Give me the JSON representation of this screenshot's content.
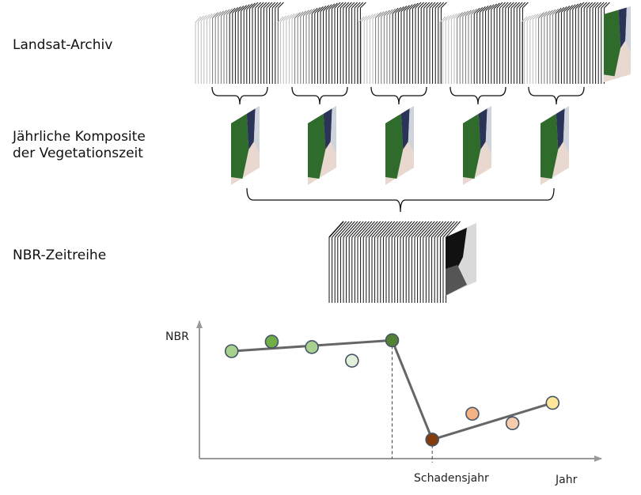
{
  "labels": {
    "archive": "Landsat-Archiv",
    "composites_line1": "Jährliche Komposite",
    "composites_line2": "der Vegetationszeit",
    "nbr_series": "NBR-Zeitreihe"
  },
  "plot": {
    "y_label": "NBR",
    "x_label": "Jahr",
    "event_label": "Schadensjahr"
  },
  "colors": {
    "stack_line": "#000000",
    "trend_line": "#666666",
    "axis": "#999999",
    "point_stroke": "#44546a",
    "forest": "#2f6b2a",
    "water": "#2a3358",
    "land": "#e8d8cf"
  },
  "chart_data": {
    "type": "scatter",
    "xlabel": "Jahr",
    "ylabel": "NBR",
    "points": [
      {
        "x": 1,
        "y": 0.79,
        "color": "#a9d18e"
      },
      {
        "x": 2,
        "y": 0.86,
        "color": "#70ad47"
      },
      {
        "x": 3,
        "y": 0.82,
        "color": "#a9d18e"
      },
      {
        "x": 4,
        "y": 0.72,
        "color": "#e2f0d9"
      },
      {
        "x": 5,
        "y": 0.87,
        "color": "#548235"
      },
      {
        "x": 6,
        "y": 0.14,
        "color": "#843c0c"
      },
      {
        "x": 7,
        "y": 0.33,
        "color": "#f4b183"
      },
      {
        "x": 8,
        "y": 0.26,
        "color": "#f8cbad"
      },
      {
        "x": 9,
        "y": 0.41,
        "color": "#ffe699"
      }
    ],
    "segments": [
      {
        "from": 1,
        "to": 5
      },
      {
        "from": 5,
        "to": 6
      },
      {
        "from": 6,
        "to": 9
      }
    ],
    "event_x": 5
  }
}
